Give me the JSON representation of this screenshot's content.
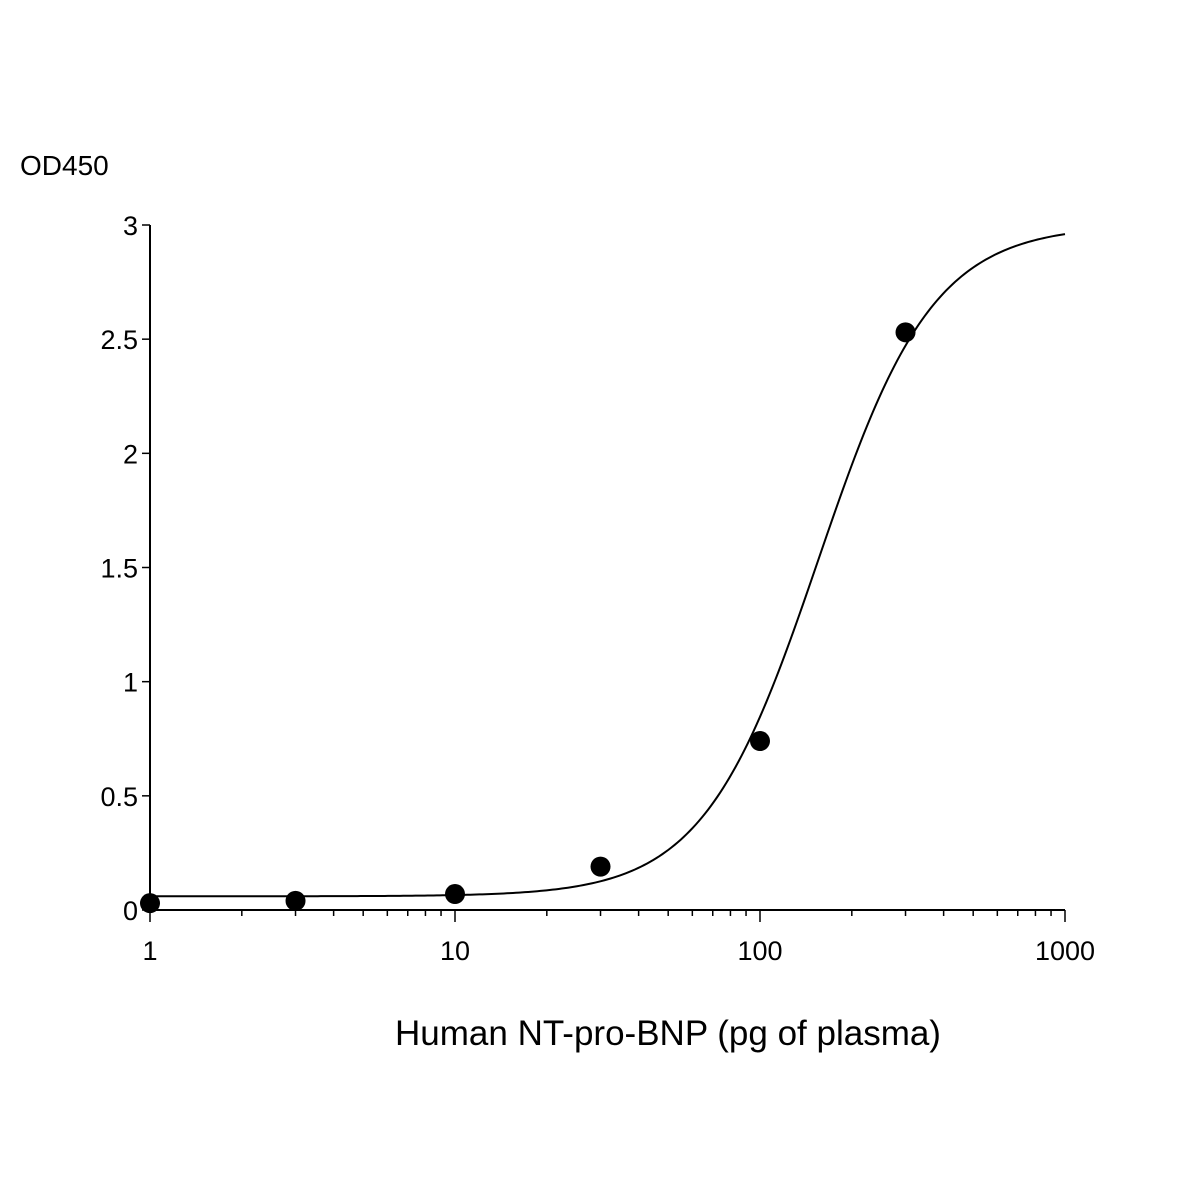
{
  "chart_data": {
    "type": "scatter",
    "ylabel": "OD450",
    "xlabel": "Human NT-pro-BNP (pg of plasma)",
    "x_scale": "log",
    "xlim": [
      1,
      1000
    ],
    "ylim": [
      0,
      3
    ],
    "x_ticks": [
      {
        "value": 1,
        "label": "1"
      },
      {
        "value": 10,
        "label": "10"
      },
      {
        "value": 100,
        "label": "100"
      },
      {
        "value": 1000,
        "label": "1000"
      }
    ],
    "y_ticks": [
      {
        "value": 0,
        "label": "0"
      },
      {
        "value": 0.5,
        "label": "0.5"
      },
      {
        "value": 1,
        "label": "1"
      },
      {
        "value": 1.5,
        "label": "1.5"
      },
      {
        "value": 2,
        "label": "2"
      },
      {
        "value": 2.5,
        "label": "2.5"
      },
      {
        "value": 3,
        "label": "3"
      }
    ],
    "points": [
      {
        "x": 1,
        "y": 0.03
      },
      {
        "x": 3,
        "y": 0.04
      },
      {
        "x": 10,
        "y": 0.07
      },
      {
        "x": 30,
        "y": 0.19
      },
      {
        "x": 100,
        "y": 0.74
      },
      {
        "x": 300,
        "y": 2.53
      }
    ],
    "fit": {
      "model": "4PL",
      "bottom": 0.06,
      "top": 3.0,
      "ec50": 155,
      "hill": 2.3
    },
    "grid": false,
    "marker_color": "#000000",
    "line_color": "#000000"
  }
}
